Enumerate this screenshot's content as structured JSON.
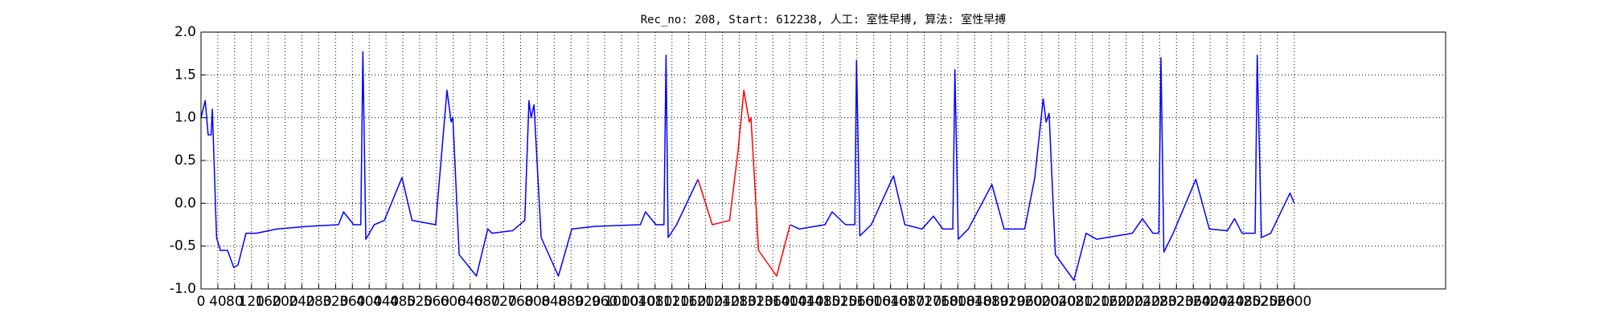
{
  "chart_data": {
    "type": "line",
    "title": "Rec_no: 208, Start: 612238, 人工: 室性早搏, 算法: 室性早搏",
    "xlim": [
      0,
      2960
    ],
    "ylim": [
      -1.0,
      2.0
    ],
    "xticks": [
      0,
      40,
      80,
      120,
      160,
      200,
      240,
      280,
      320,
      360,
      400,
      440,
      480,
      520,
      560,
      600,
      640,
      680,
      720,
      760,
      800,
      840,
      880,
      920,
      960,
      1000,
      1040,
      1080,
      1120,
      1160,
      1200,
      1240,
      1280,
      1320,
      1360,
      1400,
      1440,
      1480,
      1520,
      1560,
      1600,
      1640,
      1680,
      1720,
      1760,
      1800,
      1840,
      1880,
      1920,
      1960,
      2000,
      2040,
      2080,
      2120,
      2160,
      2200,
      2240,
      2280,
      2320,
      2360,
      2400,
      2440,
      2480,
      2520,
      2560,
      2600
    ],
    "yticks": [
      {
        "value": -1,
        "label": "-1.0"
      },
      -0.5,
      {
        "value": 0,
        "label": "0.0"
      },
      0.5,
      {
        "value": 1,
        "label": "1.0"
      },
      1.5,
      {
        "value": 2,
        "label": "2.0"
      }
    ],
    "grid": true,
    "series": [
      {
        "color": "#0000ff",
        "x": [
          0,
          10,
          17,
          24,
          27,
          37,
          46,
          63,
          78,
          88,
          107,
          132,
          180,
          253,
          327,
          339,
          363,
          380,
          385,
          392,
          412,
          436,
          478,
          502,
          558,
          585,
          595,
          599,
          614,
          655,
          682,
          692,
          741,
          770,
          780,
          785,
          792,
          809,
          850,
          882,
          936,
          1045,
          1057,
          1082,
          1101,
          1106,
          1111,
          1131,
          1182,
          1291,
          1401,
          1423,
          1484,
          1501,
          1533,
          1555,
          1559,
          1567,
          1594,
          1647,
          1674,
          1715,
          1742,
          1764,
          1788,
          1793,
          1801,
          1825,
          1881,
          1910,
          1959,
          1983,
          2003,
          2010,
          2017,
          2032,
          2076,
          2105,
          2130,
          2215,
          2239,
          2264,
          2278,
          2283,
          2290,
          2312,
          2366,
          2398,
          2441,
          2458,
          2476,
          2500,
          2507,
          2512,
          2522,
          2544,
          2590,
          2600
        ],
        "values": [
          1.0,
          1.2,
          0.8,
          0.8,
          1.1,
          -0.4,
          -0.55,
          -0.55,
          -0.75,
          -0.72,
          -0.35,
          -0.35,
          -0.3,
          -0.27,
          -0.25,
          -0.1,
          -0.25,
          -0.25,
          1.77,
          -0.42,
          -0.25,
          -0.2,
          0.3,
          -0.2,
          -0.25,
          1.32,
          0.95,
          1.0,
          -0.6,
          -0.85,
          -0.3,
          -0.35,
          -0.32,
          -0.2,
          1.2,
          1.0,
          1.15,
          -0.4,
          -0.85,
          -0.3,
          -0.27,
          -0.25,
          -0.1,
          -0.25,
          -0.25,
          1.73,
          -0.4,
          -0.25,
          0.28,
          null,
          -0.25,
          -0.3,
          -0.25,
          -0.1,
          -0.25,
          -0.25,
          1.67,
          -0.38,
          -0.25,
          0.32,
          -0.25,
          -0.3,
          -0.15,
          -0.3,
          -0.3,
          1.56,
          -0.42,
          -0.3,
          0.22,
          -0.3,
          -0.3,
          0.3,
          1.22,
          0.95,
          1.05,
          -0.6,
          -0.9,
          -0.35,
          -0.42,
          -0.35,
          -0.18,
          -0.35,
          -0.35,
          1.7,
          -0.57,
          -0.35,
          0.28,
          -0.3,
          -0.32,
          -0.18,
          -0.35,
          -0.35,
          -0.35,
          1.73,
          -0.4,
          -0.35,
          0.12,
          0.0
        ]
      },
      {
        "color": "#ff0000",
        "x": [
          1182,
          1216,
          1257,
          1277,
          1291,
          1304,
          1308,
          1326,
          1369,
          1401
        ],
        "values": [
          0.28,
          -0.25,
          -0.2,
          0.6,
          1.32,
          0.95,
          1.0,
          -0.55,
          -0.85,
          -0.25
        ]
      }
    ]
  }
}
